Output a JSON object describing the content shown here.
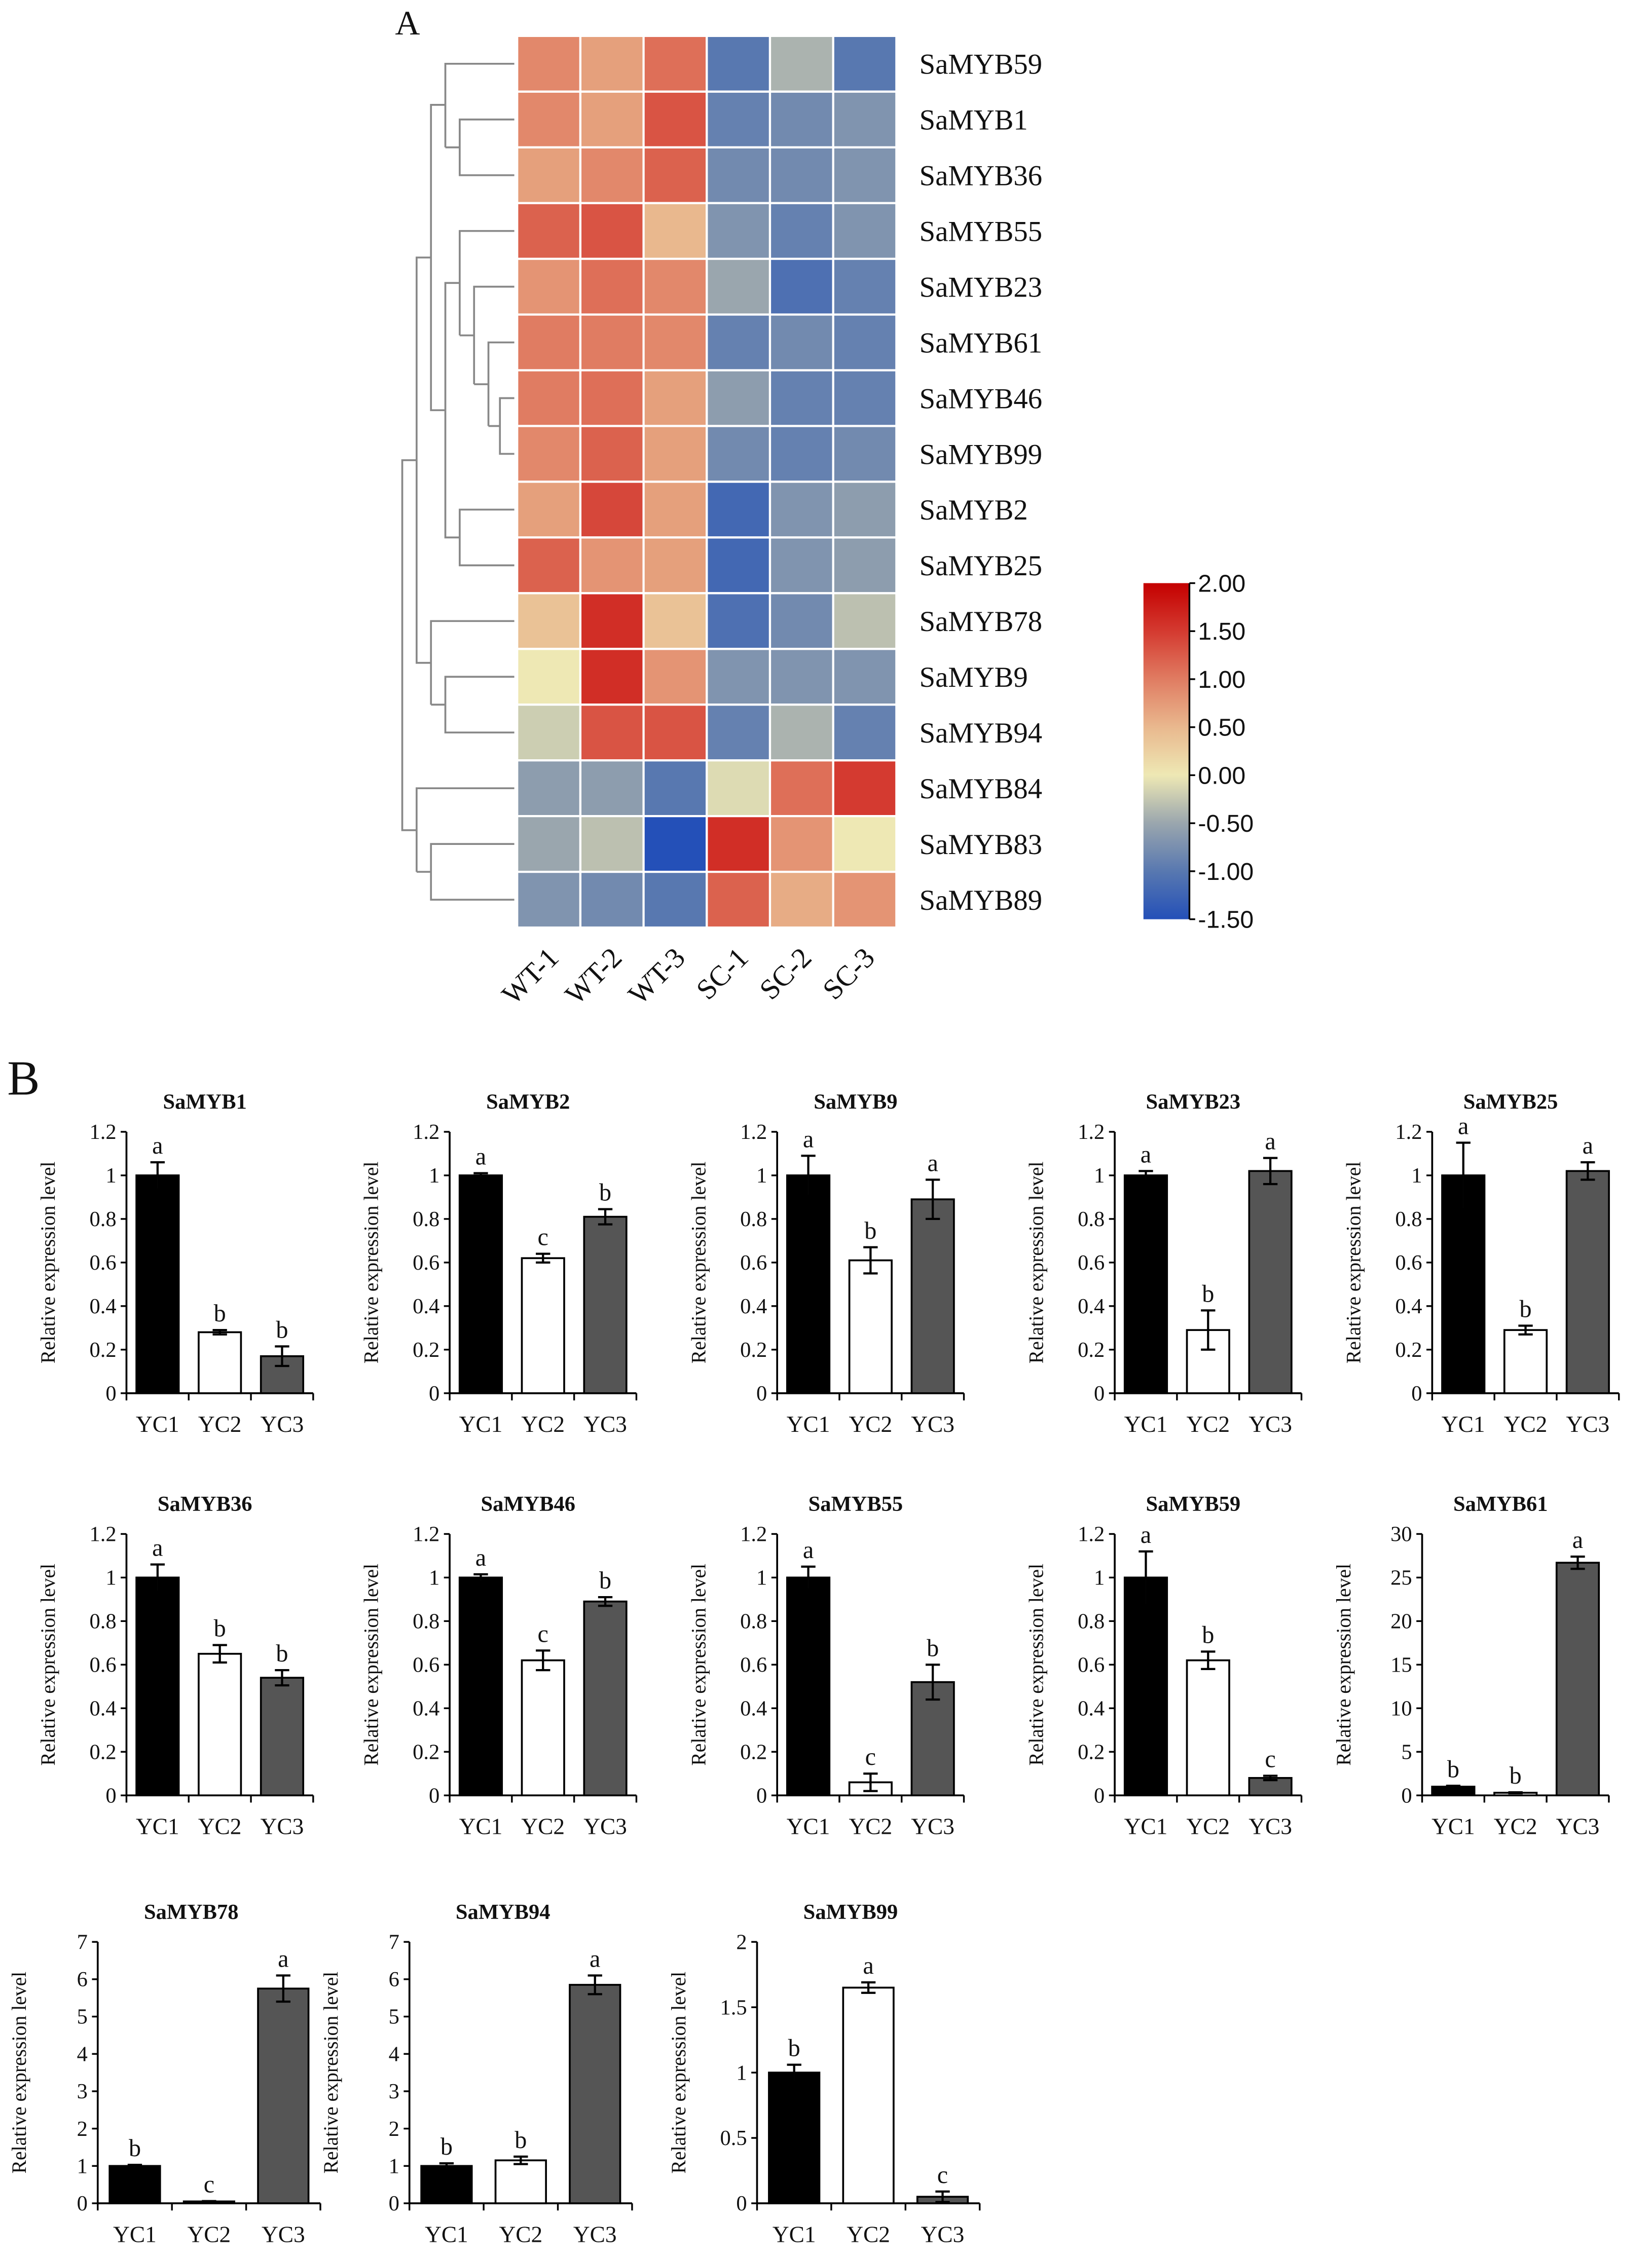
{
  "panel_labels": {
    "a": "A",
    "b": "B"
  },
  "chart_data": [
    {
      "type": "heatmap",
      "title": "",
      "columns": [
        "WT-1",
        "WT-2",
        "WT-3",
        "SC-1",
        "SC-2",
        "SC-3"
      ],
      "rows": [
        "SaMYB59",
        "SaMYB1",
        "SaMYB36",
        "SaMYB55",
        "SaMYB23",
        "SaMYB61",
        "SaMYB46",
        "SaMYB99",
        "SaMYB2",
        "SaMYB25",
        "SaMYB78",
        "SaMYB9",
        "SaMYB94",
        "SaMYB84",
        "SaMYB83",
        "SaMYB89"
      ],
      "values": [
        [
          0.9,
          0.7,
          1.1,
          -1.0,
          -0.4,
          -1.0
        ],
        [
          0.9,
          0.7,
          1.3,
          -0.9,
          -0.8,
          -0.7
        ],
        [
          0.7,
          0.9,
          1.2,
          -0.8,
          -0.8,
          -0.7
        ],
        [
          1.2,
          1.3,
          0.5,
          -0.7,
          -0.9,
          -0.7
        ],
        [
          0.8,
          1.1,
          0.9,
          -0.5,
          -1.1,
          -0.9
        ],
        [
          1.0,
          1.0,
          0.9,
          -0.9,
          -0.8,
          -0.9
        ],
        [
          1.0,
          1.1,
          0.7,
          -0.6,
          -0.9,
          -0.9
        ],
        [
          0.9,
          1.2,
          0.7,
          -0.8,
          -0.9,
          -0.8
        ],
        [
          0.7,
          1.4,
          0.7,
          -1.2,
          -0.7,
          -0.6
        ],
        [
          1.2,
          0.8,
          0.7,
          -1.2,
          -0.7,
          -0.6
        ],
        [
          0.4,
          1.6,
          0.4,
          -1.1,
          -0.8,
          -0.3
        ],
        [
          0.0,
          1.6,
          0.8,
          -0.7,
          -0.7,
          -0.7
        ],
        [
          -0.2,
          1.3,
          1.3,
          -0.9,
          -0.4,
          -0.9
        ],
        [
          -0.6,
          -0.6,
          -1.0,
          -0.1,
          1.1,
          1.5
        ],
        [
          -0.5,
          -0.3,
          -1.5,
          1.6,
          0.8,
          0.0
        ],
        [
          -0.7,
          -0.8,
          -1.0,
          1.2,
          0.6,
          0.8
        ]
      ],
      "colorbar": {
        "range": [
          -1.5,
          2.0
        ],
        "ticks": [
          "2.00",
          "1.50",
          "1.00",
          "0.50",
          "0.00",
          "-0.50",
          "-1.00",
          "-1.50"
        ],
        "stops": [
          {
            "v": -1.5,
            "color": "#2450b8"
          },
          {
            "v": -1.0,
            "color": "#5878b0"
          },
          {
            "v": -0.5,
            "color": "#9aa6ae"
          },
          {
            "v": 0.0,
            "color": "#eee8b4"
          },
          {
            "v": 0.5,
            "color": "#e9b88e"
          },
          {
            "v": 1.0,
            "color": "#e07c62"
          },
          {
            "v": 1.5,
            "color": "#d43a30"
          },
          {
            "v": 2.0,
            "color": "#c40000"
          }
        ]
      },
      "dendrogram": "rows clustered (hierarchical)"
    },
    {
      "type": "bar",
      "ylabel": "Relative expression level",
      "categories": [
        "YC1",
        "YC2",
        "YC3"
      ],
      "bar_colors": [
        "#000000",
        "#ffffff",
        "#555555"
      ],
      "panels": [
        {
          "title": "SaMYB1",
          "values": [
            1,
            0.28,
            0.17
          ],
          "errors": [
            0.06,
            0.01,
            0.045
          ],
          "letters": [
            "a",
            "b",
            "b"
          ],
          "ylim": [
            0,
            1.2
          ],
          "yticks": [
            "0",
            "0.2",
            "0.4",
            "0.6",
            "0.8",
            "1",
            "1.2"
          ]
        },
        {
          "title": "SaMYB2",
          "values": [
            1,
            0.62,
            0.81
          ],
          "errors": [
            0.01,
            0.02,
            0.035
          ],
          "letters": [
            "a",
            "c",
            "b"
          ],
          "ylim": [
            0,
            1.2
          ],
          "yticks": [
            "0",
            "0.2",
            "0.4",
            "0.6",
            "0.8",
            "1",
            "1.2"
          ]
        },
        {
          "title": "SaMYB9",
          "values": [
            1,
            0.61,
            0.89
          ],
          "errors": [
            0.09,
            0.06,
            0.09
          ],
          "letters": [
            "a",
            "b",
            "a"
          ],
          "ylim": [
            0,
            1.2
          ],
          "yticks": [
            "0",
            "0.2",
            "0.4",
            "0.6",
            "0.8",
            "1",
            "1.2"
          ]
        },
        {
          "title": "SaMYB23",
          "values": [
            1,
            0.29,
            1.02
          ],
          "errors": [
            0.02,
            0.09,
            0.06
          ],
          "letters": [
            "a",
            "b",
            "a"
          ],
          "ylim": [
            0,
            1.2
          ],
          "yticks": [
            "0",
            "0.2",
            "0.4",
            "0.6",
            "0.8",
            "1",
            "1.2"
          ]
        },
        {
          "title": "SaMYB25",
          "values": [
            1,
            0.29,
            1.02
          ],
          "errors": [
            0.15,
            0.02,
            0.04
          ],
          "letters": [
            "a",
            "b",
            "a"
          ],
          "ylim": [
            0,
            1.2
          ],
          "yticks": [
            "0",
            "0.2",
            "0.4",
            "0.6",
            "0.8",
            "1",
            "1.2"
          ]
        },
        {
          "title": "SaMYB36",
          "values": [
            1,
            0.65,
            0.54
          ],
          "errors": [
            0.06,
            0.04,
            0.035
          ],
          "letters": [
            "a",
            "b",
            "b"
          ],
          "ylim": [
            0,
            1.2
          ],
          "yticks": [
            "0",
            "0.2",
            "0.4",
            "0.6",
            "0.8",
            "1",
            "1.2"
          ]
        },
        {
          "title": "SaMYB46",
          "values": [
            1,
            0.62,
            0.89
          ],
          "errors": [
            0.015,
            0.045,
            0.02
          ],
          "letters": [
            "a",
            "c",
            "b"
          ],
          "ylim": [
            0,
            1.2
          ],
          "yticks": [
            "0",
            "0.2",
            "0.4",
            "0.6",
            "0.8",
            "1",
            "1.2"
          ]
        },
        {
          "title": "SaMYB55",
          "values": [
            1,
            0.06,
            0.52
          ],
          "errors": [
            0.05,
            0.04,
            0.08
          ],
          "letters": [
            "a",
            "c",
            "b"
          ],
          "ylim": [
            0,
            1.2
          ],
          "yticks": [
            "0",
            "0.2",
            "0.4",
            "0.6",
            "0.8",
            "1",
            "1.2"
          ]
        },
        {
          "title": "SaMYB59",
          "values": [
            1,
            0.62,
            0.08
          ],
          "errors": [
            0.12,
            0.04,
            0.01
          ],
          "letters": [
            "a",
            "b",
            "c"
          ],
          "ylim": [
            0,
            1.2
          ],
          "yticks": [
            "0",
            "0.2",
            "0.4",
            "0.6",
            "0.8",
            "1",
            "1.2"
          ]
        },
        {
          "title": "SaMYB61",
          "values": [
            1,
            0.3,
            26.7
          ],
          "errors": [
            0.1,
            0.05,
            0.7
          ],
          "letters": [
            "b",
            "b",
            "a"
          ],
          "ylim": [
            0,
            30
          ],
          "yticks": [
            "0",
            "5",
            "10",
            "15",
            "20",
            "25",
            "30"
          ]
        },
        {
          "title": "SaMYB78",
          "values": [
            1,
            0.05,
            5.75
          ],
          "errors": [
            0.03,
            0.01,
            0.35
          ],
          "letters": [
            "b",
            "c",
            "a"
          ],
          "ylim": [
            0,
            7
          ],
          "yticks": [
            "0",
            "1",
            "2",
            "3",
            "4",
            "5",
            "6",
            "7"
          ]
        },
        {
          "title": "SaMYB94",
          "values": [
            1,
            1.15,
            5.85
          ],
          "errors": [
            0.07,
            0.1,
            0.25
          ],
          "letters": [
            "b",
            "b",
            "a"
          ],
          "ylim": [
            0,
            7
          ],
          "yticks": [
            "0",
            "1",
            "2",
            "3",
            "4",
            "5",
            "6",
            "7"
          ]
        },
        {
          "title": "SaMYB99",
          "values": [
            1,
            1.65,
            0.05
          ],
          "errors": [
            0.06,
            0.04,
            0.04
          ],
          "letters": [
            "b",
            "a",
            "c"
          ],
          "ylim": [
            0,
            2
          ],
          "yticks": [
            "0",
            "0.5",
            "1",
            "1.5",
            "2"
          ]
        }
      ]
    }
  ]
}
